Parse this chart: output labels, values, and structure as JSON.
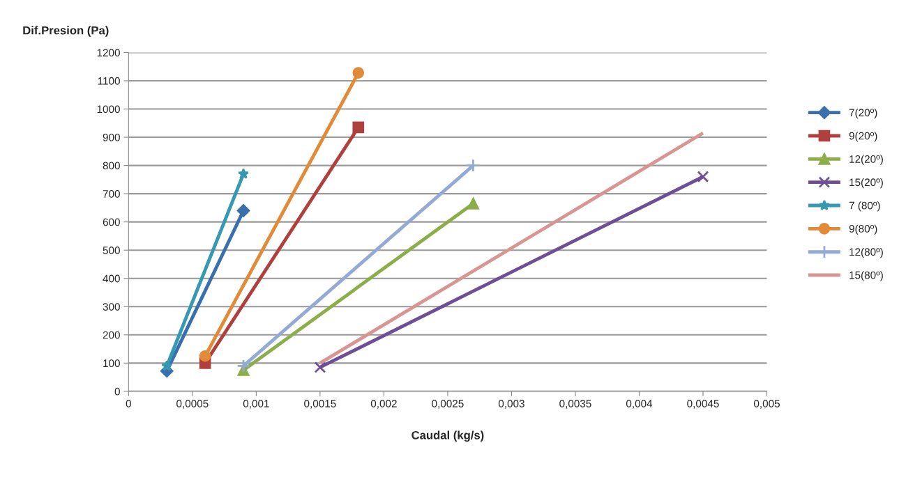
{
  "chart_data": {
    "type": "line",
    "xlabel": "Caudal (kg/s)",
    "ylabel": "Dif.Presion (Pa)",
    "xlim": [
      0,
      0.005
    ],
    "xticks": [
      {
        "value": 0,
        "label": "0"
      },
      {
        "value": 0.0005,
        "label": "0,0005"
      },
      {
        "value": 0.001,
        "label": "0,001"
      },
      {
        "value": 0.0015,
        "label": "0,0015"
      },
      {
        "value": 0.002,
        "label": "0,002"
      },
      {
        "value": 0.0025,
        "label": "0,0025"
      },
      {
        "value": 0.003,
        "label": "0,003"
      },
      {
        "value": 0.0035,
        "label": "0,0035"
      },
      {
        "value": 0.004,
        "label": "0,004"
      },
      {
        "value": 0.0045,
        "label": "0,0045"
      },
      {
        "value": 0.005,
        "label": "0,005"
      }
    ],
    "ylim": [
      0,
      1200
    ],
    "yticks": [
      0,
      100,
      200,
      300,
      400,
      500,
      600,
      700,
      800,
      900,
      1000,
      1100,
      1200
    ],
    "grid": "y",
    "legend": "right",
    "series": [
      {
        "name": "7(20º)",
        "color": "#3a6fad",
        "marker": "diamond",
        "x": [
          0.0003,
          0.0009
        ],
        "values": [
          72,
          640
        ]
      },
      {
        "name": "9(20º)",
        "color": "#b0403d",
        "marker": "square",
        "x": [
          0.0006,
          0.0018
        ],
        "values": [
          100,
          935
        ]
      },
      {
        "name": "12(20º)",
        "color": "#8bae48",
        "marker": "triangle",
        "x": [
          0.0009,
          0.0027
        ],
        "values": [
          75,
          665
        ]
      },
      {
        "name": "15(20º)",
        "color": "#6e4f95",
        "marker": "cross",
        "x": [
          0.0015,
          0.0045
        ],
        "values": [
          85,
          760
        ]
      },
      {
        "name": "7 (80º)",
        "color": "#3599b1",
        "marker": "star",
        "x": [
          0.0003,
          0.0009
        ],
        "values": [
          90,
          770
        ]
      },
      {
        "name": "9(80º)",
        "color": "#e18a38",
        "marker": "circle",
        "x": [
          0.0006,
          0.0018
        ],
        "values": [
          125,
          1128
        ]
      },
      {
        "name": "12(80º)",
        "color": "#93aad4",
        "marker": "plus",
        "x": [
          0.0009,
          0.0027
        ],
        "values": [
          90,
          800
        ]
      },
      {
        "name": "15(80º)",
        "color": "#d79593",
        "marker": "none",
        "x": [
          0.0015,
          0.0045
        ],
        "values": [
          100,
          915
        ]
      }
    ]
  }
}
